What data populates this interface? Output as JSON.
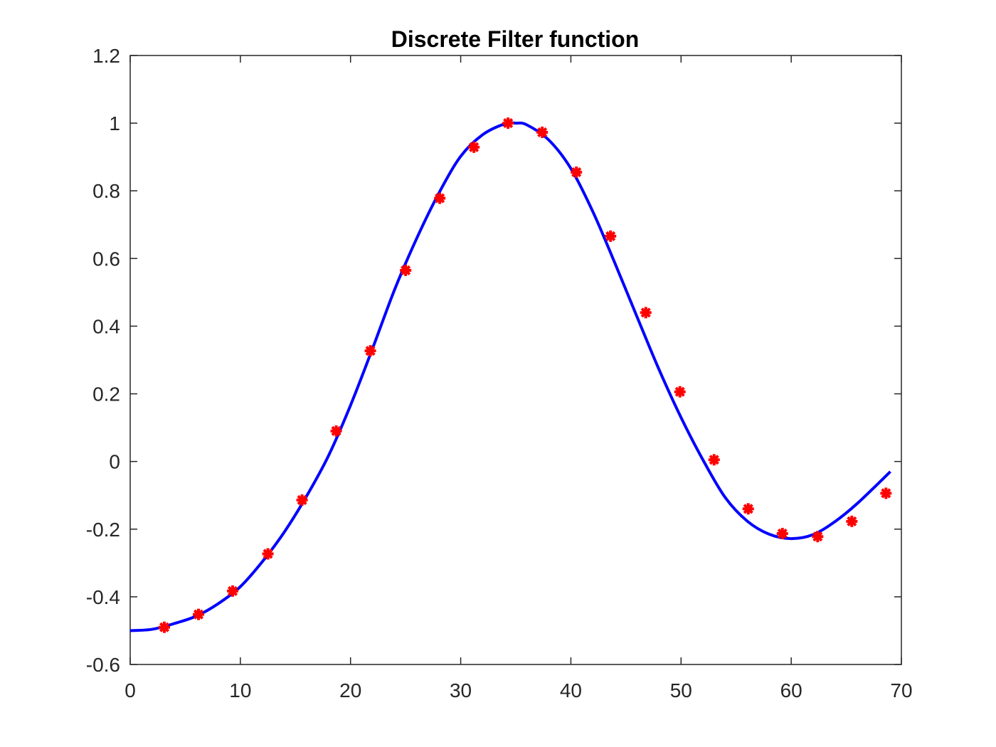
{
  "chart_data": {
    "type": "line",
    "title": "Discrete Filter function",
    "xlabel": "",
    "ylabel": "",
    "xlim": [
      0,
      70
    ],
    "ylim": [
      -0.6,
      1.2
    ],
    "x_ticks": [
      0,
      10,
      20,
      30,
      40,
      50,
      60,
      70
    ],
    "y_ticks": [
      -0.6,
      -0.4,
      -0.2,
      0,
      0.2,
      0.4,
      0.6,
      0.8,
      1,
      1.2
    ],
    "x_tick_labels": [
      "0",
      "10",
      "20",
      "30",
      "40",
      "50",
      "60",
      "70"
    ],
    "y_tick_labels": [
      "-0.6",
      "-0.4",
      "-0.2",
      "0",
      "0.2",
      "0.4",
      "0.6",
      "0.8",
      "1",
      "1.2"
    ],
    "grid": false,
    "series": [
      {
        "style": "solid-line",
        "color": "#0000ff",
        "x": [
          0,
          2,
          4,
          6,
          8,
          10,
          12,
          14,
          16,
          18,
          20,
          22,
          24,
          26,
          28,
          30,
          32,
          34,
          35,
          36,
          38,
          40,
          42,
          44,
          46,
          48,
          50,
          52,
          54,
          56,
          58,
          60,
          62,
          64,
          66,
          69
        ],
        "y": [
          -0.5,
          -0.496,
          -0.479,
          -0.457,
          -0.42,
          -0.37,
          -0.296,
          -0.208,
          -0.103,
          0.017,
          0.166,
          0.334,
          0.508,
          0.659,
          0.792,
          0.902,
          0.966,
          0.998,
          1.0,
          0.995,
          0.95,
          0.866,
          0.738,
          0.586,
          0.428,
          0.272,
          0.13,
          0.004,
          -0.106,
          -0.176,
          -0.215,
          -0.228,
          -0.216,
          -0.177,
          -0.124,
          -0.03
        ]
      },
      {
        "style": "asterisk-markers",
        "color": "#ff0000",
        "x": [
          3.1,
          6.2,
          9.3,
          12.5,
          15.6,
          18.7,
          21.8,
          25.0,
          28.1,
          31.2,
          34.3,
          37.4,
          40.5,
          43.6,
          46.8,
          49.9,
          53.0,
          56.1,
          59.2,
          62.4,
          65.5,
          68.6
        ],
        "y": [
          -0.49,
          -0.452,
          -0.383,
          -0.273,
          -0.114,
          0.09,
          0.327,
          0.565,
          0.778,
          0.929,
          1.0,
          0.973,
          0.855,
          0.666,
          0.44,
          0.206,
          0.005,
          -0.14,
          -0.213,
          -0.222,
          -0.177,
          -0.094
        ]
      }
    ]
  }
}
